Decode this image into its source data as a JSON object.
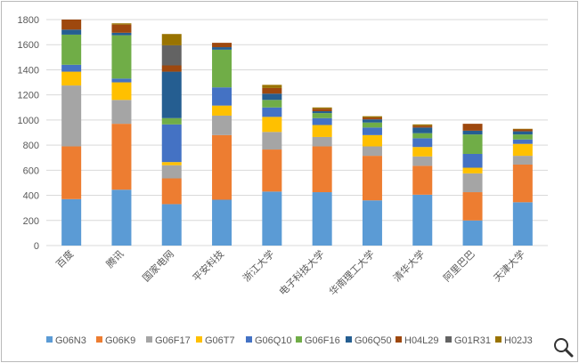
{
  "chart_data": {
    "type": "bar",
    "stacked": true,
    "categories": [
      "百度",
      "腾讯",
      "国家电网",
      "平安科技",
      "浙江大学",
      "电子科技大学",
      "华南理工大学",
      "清华大学",
      "阿里巴巴",
      "天津大学"
    ],
    "ylim": [
      0,
      1800
    ],
    "yticks": [
      0,
      200,
      400,
      600,
      800,
      1000,
      1200,
      1400,
      1600,
      1800
    ],
    "grid": true,
    "legend_position": "bottom",
    "series": [
      {
        "name": "G06N3",
        "color": "#5b9bd5",
        "values": [
          370,
          445,
          330,
          365,
          430,
          425,
          360,
          405,
          200,
          345
        ]
      },
      {
        "name": "G06K9",
        "color": "#ed7d31",
        "values": [
          420,
          525,
          205,
          515,
          335,
          365,
          355,
          230,
          225,
          300
        ]
      },
      {
        "name": "G06F17",
        "color": "#a5a5a5",
        "values": [
          485,
          190,
          105,
          155,
          140,
          75,
          75,
          75,
          150,
          70
        ]
      },
      {
        "name": "G06T7",
        "color": "#ffc000",
        "values": [
          110,
          140,
          25,
          80,
          120,
          95,
          90,
          75,
          45,
          95
        ]
      },
      {
        "name": "G06Q10",
        "color": "#4472c4",
        "values": [
          55,
          30,
          300,
          145,
          75,
          55,
          60,
          70,
          110,
          35
        ]
      },
      {
        "name": "G06F16",
        "color": "#70ad47",
        "values": [
          240,
          345,
          50,
          300,
          60,
          40,
          40,
          40,
          155,
          40
        ]
      },
      {
        "name": "G06Q50",
        "color": "#255e91",
        "values": [
          40,
          20,
          370,
          20,
          50,
          15,
          25,
          45,
          30,
          25
        ]
      },
      {
        "name": "H04L29",
        "color": "#9e480e",
        "values": [
          80,
          65,
          50,
          35,
          45,
          20,
          15,
          15,
          55,
          15
        ]
      },
      {
        "name": "G01R31",
        "color": "#636363",
        "values": [
          0,
          0,
          160,
          0,
          0,
          0,
          0,
          0,
          0,
          0
        ]
      },
      {
        "name": "H02J3",
        "color": "#997300",
        "values": [
          0,
          10,
          90,
          0,
          25,
          10,
          10,
          10,
          0,
          5
        ]
      }
    ]
  },
  "toolbar": {
    "zoom_icon": "magnifier-icon"
  }
}
